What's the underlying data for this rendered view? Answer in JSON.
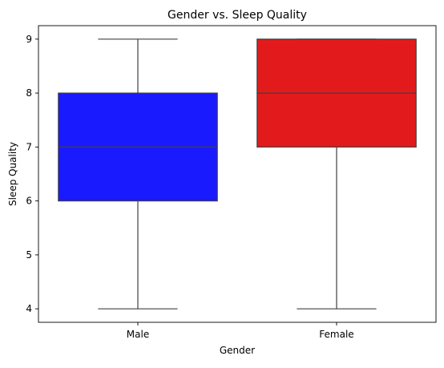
{
  "chart_data": {
    "type": "box",
    "title": "Gender vs. Sleep Quality",
    "xlabel": "Gender",
    "ylabel": "Sleep Quality",
    "categories": [
      "Male",
      "Female"
    ],
    "boxes": [
      {
        "category": "Male",
        "min": 4,
        "q1": 6,
        "median": 7,
        "q3": 8,
        "max": 9,
        "color": "#1a1aff"
      },
      {
        "category": "Female",
        "min": 4,
        "q1": 7,
        "median": 8,
        "q3": 9,
        "max": 9,
        "color": "#e31a1c"
      }
    ],
    "ylim": [
      3.75,
      9.25
    ],
    "yticks": [
      "4",
      "5",
      "6",
      "7",
      "8",
      "9"
    ],
    "grid": false,
    "legend": "none"
  }
}
